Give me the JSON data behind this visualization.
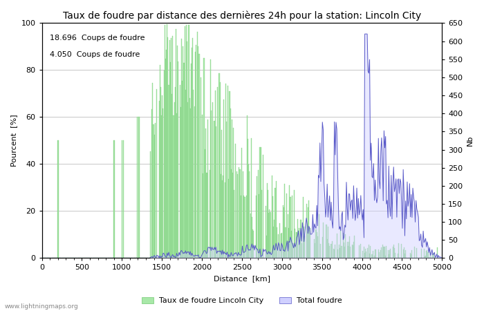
{
  "title": "Taux de foudre par distance des dernières 24h pour la station: Lincoln City",
  "xlabel": "Distance  [km]",
  "ylabel_left": "Pourcent  [%]",
  "ylabel_right": "Nb",
  "annotation_line1": "18.696  Coups de foudre",
  "annotation_line2": "4.050  Coups de foudre",
  "legend_label1": "Taux de foudre Lincoln City",
  "legend_label2": "Total foudre",
  "watermark": "www.lightningmaps.org",
  "xlim": [
    0,
    5000
  ],
  "ylim_left": [
    0,
    100
  ],
  "ylim_right": [
    0,
    650
  ],
  "xticks": [
    0,
    500,
    1000,
    1500,
    2000,
    2500,
    3000,
    3500,
    4000,
    4500,
    5000
  ],
  "yticks_left": [
    0,
    20,
    40,
    60,
    80,
    100
  ],
  "yticks_right": [
    0,
    50,
    100,
    150,
    200,
    250,
    300,
    350,
    400,
    450,
    500,
    550,
    600,
    650
  ],
  "bar_color": "#a8e8a8",
  "bar_edge_color": "#70c870",
  "fill_color": "#d0d0ff",
  "line_color": "#5858c8",
  "background_color": "#ffffff",
  "grid_color": "#b0b0b0",
  "title_fontsize": 10,
  "label_fontsize": 8,
  "tick_fontsize": 8,
  "annot_fontsize": 8,
  "seed": 123
}
